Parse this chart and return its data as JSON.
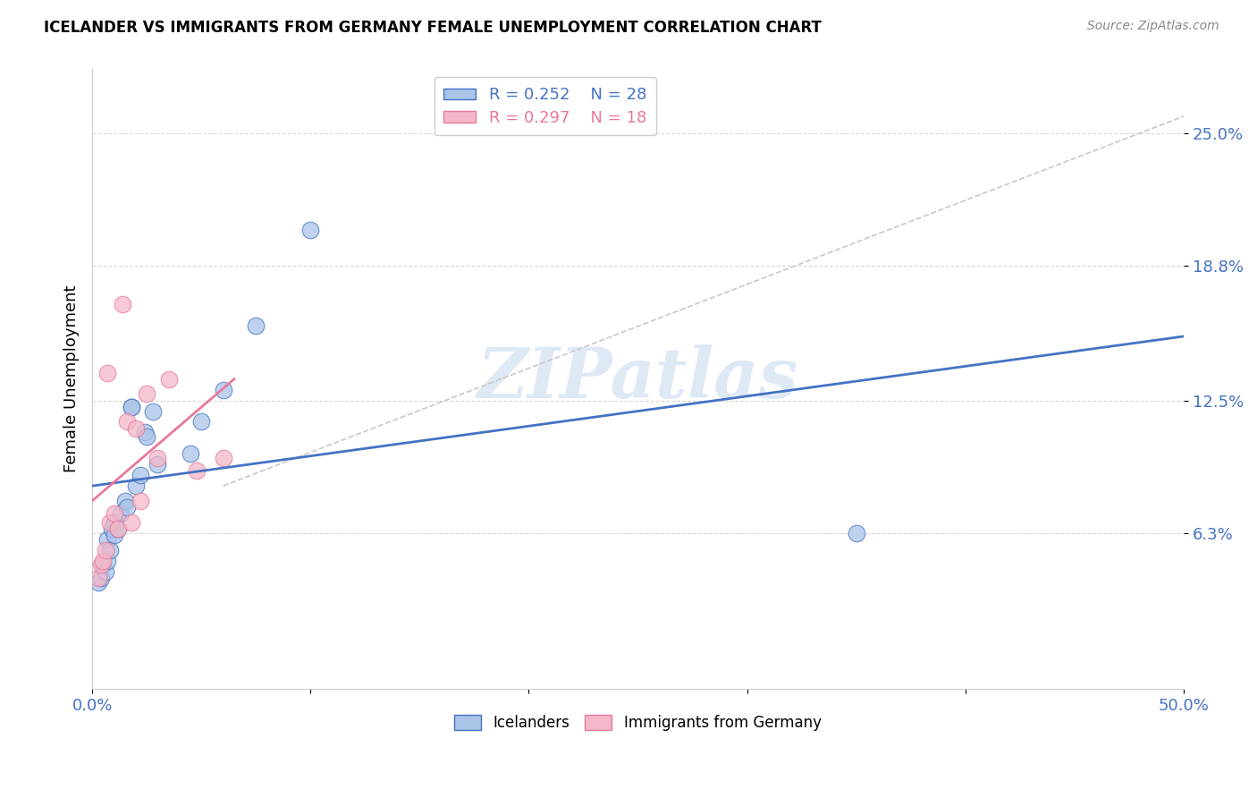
{
  "title": "ICELANDER VS IMMIGRANTS FROM GERMANY FEMALE UNEMPLOYMENT CORRELATION CHART",
  "source": "Source: ZipAtlas.com",
  "ylabel": "Female Unemployment",
  "ytick_labels": [
    "6.3%",
    "12.5%",
    "18.8%",
    "25.0%"
  ],
  "ytick_values": [
    0.063,
    0.125,
    0.188,
    0.25
  ],
  "xtick_vals": [
    0.0,
    0.1,
    0.2,
    0.3,
    0.4,
    0.5
  ],
  "xtick_labels": [
    "0.0%",
    "",
    "",
    "",
    "",
    "50.0%"
  ],
  "xlim": [
    0.0,
    0.5
  ],
  "ylim": [
    -0.01,
    0.28
  ],
  "watermark": "ZIPatlas",
  "legend_blue_r": "0.252",
  "legend_blue_n": "28",
  "legend_pink_r": "0.297",
  "legend_pink_n": "18",
  "blue_scatter_color": "#aac4e8",
  "pink_scatter_color": "#f5b8c8",
  "blue_edge_color": "#4472c4",
  "pink_edge_color": "#e8789a",
  "blue_line_color": "#4472c4",
  "pink_line_color": "#e8789a",
  "dashed_line_color": "#c8c8c8",
  "icelanders_x": [
    0.003,
    0.004,
    0.005,
    0.006,
    0.007,
    0.007,
    0.008,
    0.009,
    0.01,
    0.01,
    0.012,
    0.013,
    0.015,
    0.016,
    0.018,
    0.018,
    0.02,
    0.022,
    0.024,
    0.025,
    0.028,
    0.03,
    0.045,
    0.05,
    0.06,
    0.075,
    0.1,
    0.35
  ],
  "icelanders_y": [
    0.04,
    0.042,
    0.048,
    0.045,
    0.05,
    0.06,
    0.055,
    0.065,
    0.062,
    0.068,
    0.065,
    0.072,
    0.078,
    0.075,
    0.122,
    0.122,
    0.085,
    0.09,
    0.11,
    0.108,
    0.12,
    0.095,
    0.1,
    0.115,
    0.13,
    0.16,
    0.205,
    0.063
  ],
  "germany_x": [
    0.003,
    0.004,
    0.005,
    0.006,
    0.007,
    0.008,
    0.01,
    0.012,
    0.014,
    0.016,
    0.018,
    0.02,
    0.022,
    0.025,
    0.03,
    0.035,
    0.048,
    0.06
  ],
  "germany_y": [
    0.042,
    0.048,
    0.05,
    0.055,
    0.138,
    0.068,
    0.072,
    0.065,
    0.17,
    0.115,
    0.068,
    0.112,
    0.078,
    0.128,
    0.098,
    0.135,
    0.092,
    0.098
  ],
  "blue_line_x": [
    0.0,
    0.5
  ],
  "blue_line_y": [
    0.085,
    0.155
  ],
  "pink_line_x": [
    0.0,
    0.065
  ],
  "pink_line_y": [
    0.078,
    0.135
  ],
  "dashed_line_x": [
    0.06,
    0.5
  ],
  "dashed_line_y": [
    0.085,
    0.258
  ]
}
